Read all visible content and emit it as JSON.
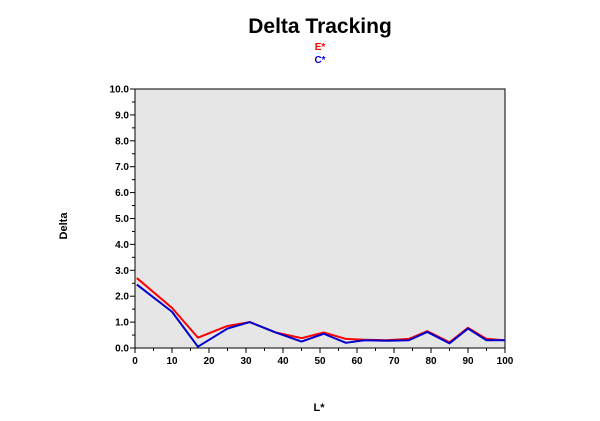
{
  "chart_data": {
    "type": "line",
    "title": "Delta Tracking",
    "xlabel": "L*",
    "ylabel": "Delta",
    "xlim": [
      0,
      100
    ],
    "ylim": [
      0,
      10
    ],
    "x_ticks": [
      "0",
      "10",
      "20",
      "30",
      "40",
      "50",
      "60",
      "70",
      "80",
      "90",
      "100"
    ],
    "y_ticks": [
      "0.0",
      "1.0",
      "2.0",
      "3.0",
      "4.0",
      "5.0",
      "6.0",
      "7.0",
      "8.0",
      "9.0",
      "10.0"
    ],
    "plot_background": "#e6e6e6",
    "legend_position": "top-center",
    "series": [
      {
        "name": "E*",
        "color": "#ff0000",
        "x": [
          0.5,
          10,
          17,
          25,
          31,
          38,
          45,
          51,
          57,
          62,
          68,
          74,
          79,
          85,
          90,
          95,
          100
        ],
        "y": [
          2.7,
          1.55,
          0.4,
          0.85,
          1.0,
          0.6,
          0.38,
          0.6,
          0.35,
          0.32,
          0.3,
          0.35,
          0.65,
          0.22,
          0.78,
          0.35,
          0.3
        ]
      },
      {
        "name": "C*",
        "color": "#0000cc",
        "x": [
          0.5,
          10,
          17,
          25,
          31,
          38,
          45,
          51,
          57,
          62,
          68,
          74,
          79,
          85,
          90,
          95,
          100
        ],
        "y": [
          2.45,
          1.4,
          0.05,
          0.75,
          1.0,
          0.6,
          0.25,
          0.55,
          0.2,
          0.3,
          0.28,
          0.3,
          0.62,
          0.18,
          0.75,
          0.3,
          0.3
        ]
      }
    ]
  }
}
